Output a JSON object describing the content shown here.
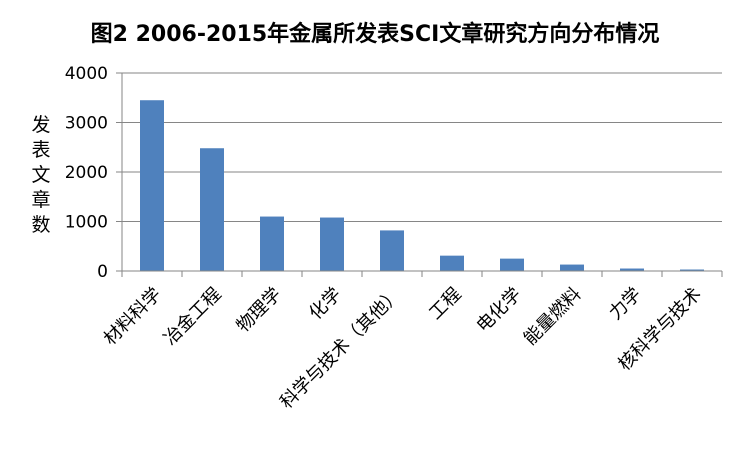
{
  "chart_data": {
    "type": "bar",
    "title": "图2 2006-2015年金属所发表SCI文章研究方向分布情况",
    "ylabel": "发表文章数",
    "xlabel": "",
    "categories": [
      "材料科学",
      "冶金工程",
      "物理学",
      "化学",
      "科学与技术（其他）",
      "工程",
      "电化学",
      "能量燃料",
      "力学",
      "核科学与技术"
    ],
    "values": [
      3450,
      2480,
      1100,
      1080,
      820,
      310,
      250,
      130,
      50,
      30
    ],
    "ylim": [
      0,
      4000
    ],
    "yticks": [
      0,
      1000,
      2000,
      3000,
      4000
    ],
    "grid": true,
    "legend": "none",
    "bar_color": "#4F81BD",
    "grid_color": "#868686"
  }
}
